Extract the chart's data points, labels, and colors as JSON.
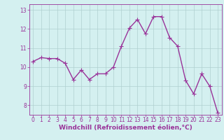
{
  "x": [
    0,
    1,
    2,
    3,
    4,
    5,
    6,
    7,
    8,
    9,
    10,
    11,
    12,
    13,
    14,
    15,
    16,
    17,
    18,
    19,
    20,
    21,
    22,
    23
  ],
  "y": [
    10.3,
    10.5,
    10.45,
    10.45,
    10.2,
    9.35,
    9.85,
    9.35,
    9.65,
    9.65,
    10.0,
    11.1,
    12.05,
    12.5,
    11.75,
    12.65,
    12.65,
    11.55,
    11.1,
    9.3,
    8.6,
    9.65,
    9.0,
    7.6
  ],
  "line_color": "#993399",
  "marker": "D",
  "marker_size": 2.0,
  "bg_color": "#d4f0f0",
  "grid_color": "#b0d0d0",
  "xlabel": "Windchill (Refroidissement éolien,°C)",
  "xlabel_color": "#993399",
  "tick_color": "#993399",
  "ylim": [
    7.5,
    13.3
  ],
  "xlim": [
    -0.5,
    23.5
  ],
  "yticks": [
    8,
    9,
    10,
    11,
    12,
    13
  ],
  "xticks": [
    0,
    1,
    2,
    3,
    4,
    5,
    6,
    7,
    8,
    9,
    10,
    11,
    12,
    13,
    14,
    15,
    16,
    17,
    18,
    19,
    20,
    21,
    22,
    23
  ],
  "spine_color": "#993399",
  "line_width": 1.0,
  "tick_fontsize": 5.5,
  "xlabel_fontsize": 6.5
}
